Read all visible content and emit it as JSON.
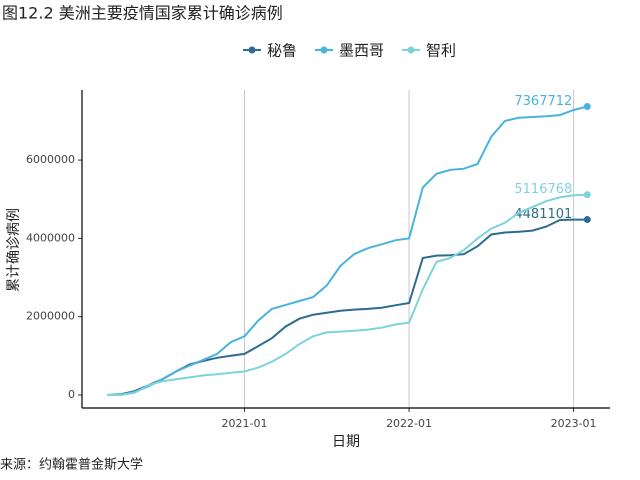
{
  "chart_data": {
    "type": "line",
    "title": "图12.2 美洲主要疫情国家累计确诊病例",
    "caption": "来源：约翰霍普金斯大学",
    "xlabel": "日期",
    "ylabel": "累计确诊病例",
    "x": [
      "2020-03",
      "2020-04",
      "2020-05",
      "2020-06",
      "2020-07",
      "2020-08",
      "2020-09",
      "2020-10",
      "2020-11",
      "2020-12",
      "2021-01",
      "2021-02",
      "2021-03",
      "2021-04",
      "2021-05",
      "2021-06",
      "2021-07",
      "2021-08",
      "2021-09",
      "2021-10",
      "2021-11",
      "2021-12",
      "2022-01",
      "2022-02",
      "2022-03",
      "2022-04",
      "2022-05",
      "2022-06",
      "2022-07",
      "2022-08",
      "2022-09",
      "2022-10",
      "2022-11",
      "2022-12",
      "2023-01",
      "2023-02"
    ],
    "series": [
      {
        "name": "秘鲁",
        "color": "#2d6b8f",
        "values": [
          0,
          20000,
          100000,
          250000,
          400000,
          600000,
          780000,
          870000,
          950000,
          1000000,
          1050000,
          1250000,
          1450000,
          1750000,
          1950000,
          2050000,
          2100000,
          2150000,
          2180000,
          2200000,
          2230000,
          2290000,
          2350000,
          3500000,
          3560000,
          3570000,
          3600000,
          3800000,
          4100000,
          4150000,
          4170000,
          4200000,
          4300000,
          4470000,
          4480000,
          4481101
        ]
      },
      {
        "name": "墨西哥",
        "color": "#48b3dd",
        "values": [
          0,
          5000,
          80000,
          220000,
          400000,
          600000,
          750000,
          900000,
          1050000,
          1350000,
          1500000,
          1900000,
          2200000,
          2300000,
          2400000,
          2500000,
          2800000,
          3300000,
          3600000,
          3750000,
          3850000,
          3950000,
          4000000,
          5300000,
          5650000,
          5750000,
          5780000,
          5900000,
          6600000,
          7000000,
          7080000,
          7100000,
          7120000,
          7150000,
          7280000,
          7367712
        ]
      },
      {
        "name": "智利",
        "color": "#7dd3dc",
        "values": [
          0,
          3000,
          60000,
          250000,
          350000,
          400000,
          450000,
          500000,
          530000,
          570000,
          600000,
          700000,
          850000,
          1050000,
          1300000,
          1500000,
          1600000,
          1620000,
          1640000,
          1670000,
          1720000,
          1800000,
          1850000,
          2700000,
          3400000,
          3500000,
          3700000,
          4000000,
          4250000,
          4400000,
          4650000,
          4800000,
          4950000,
          5050000,
          5100000,
          5116768
        ]
      }
    ],
    "xlim": [
      "2020-01",
      "2023-03"
    ],
    "xticks": [
      "2021-01",
      "2022-01",
      "2023-01"
    ],
    "ylim": [
      -332000,
      7790000
    ],
    "yticks": [
      0,
      2000000,
      4000000,
      6000000
    ],
    "grid": "x",
    "legend": "top"
  }
}
